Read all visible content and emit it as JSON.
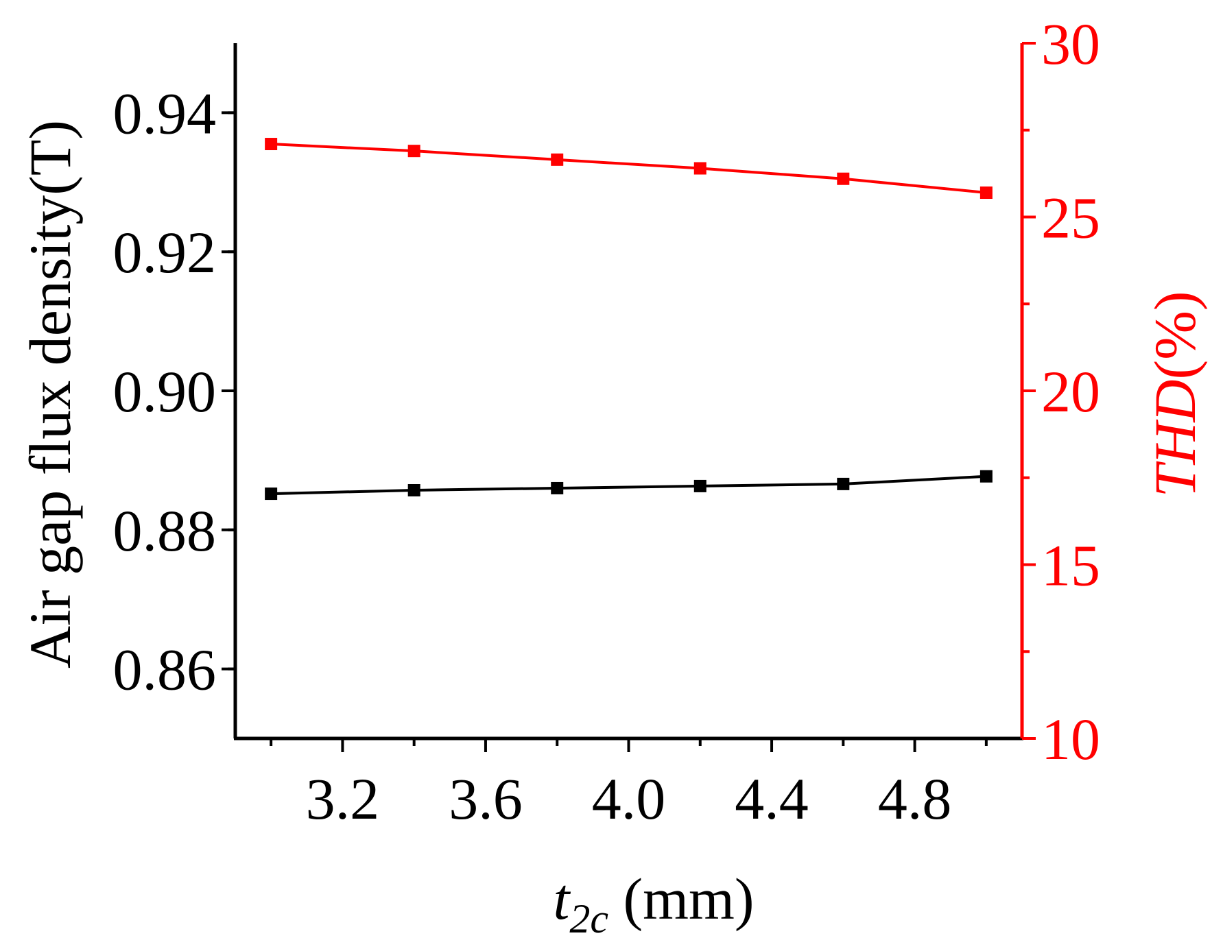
{
  "colors": {
    "left_series": "#000000",
    "right_series": "#ff0000",
    "background": "#ffffff"
  },
  "chart_data": {
    "type": "line",
    "title": "",
    "x": [
      3.0,
      3.4,
      3.8,
      4.2,
      4.6,
      5.0
    ],
    "xlim": [
      2.9,
      5.1
    ],
    "x_ticks": [
      "3.2",
      "3.6",
      "4.0",
      "4.4",
      "4.8"
    ],
    "x_tick_values": [
      3.2,
      3.6,
      4.0,
      4.4,
      4.8
    ],
    "xlabel": {
      "main": "t",
      "subscript": "2c",
      "unit": " (mm)"
    },
    "y_left": {
      "label": "Air gap flux density(T)",
      "lim": [
        0.85,
        0.95
      ],
      "ticks": [
        "0.86",
        "0.88",
        "0.90",
        "0.92",
        "0.94"
      ],
      "tick_values": [
        0.86,
        0.88,
        0.9,
        0.92,
        0.94
      ]
    },
    "y_right": {
      "label": "THD(%)",
      "lim": [
        10,
        30
      ],
      "ticks": [
        "10",
        "15",
        "20",
        "25",
        "30"
      ],
      "tick_values": [
        10,
        15,
        20,
        25,
        30
      ]
    },
    "series": [
      {
        "axis": "left",
        "color": "#000000",
        "marker": "square",
        "values": [
          0.8852,
          0.8857,
          0.886,
          0.8863,
          0.8866,
          0.8877
        ]
      },
      {
        "axis": "right",
        "color": "#ff0000",
        "marker": "square",
        "values": [
          27.1,
          26.9,
          26.65,
          26.4,
          26.1,
          25.7
        ]
      }
    ],
    "grid": false,
    "legend": "none"
  }
}
